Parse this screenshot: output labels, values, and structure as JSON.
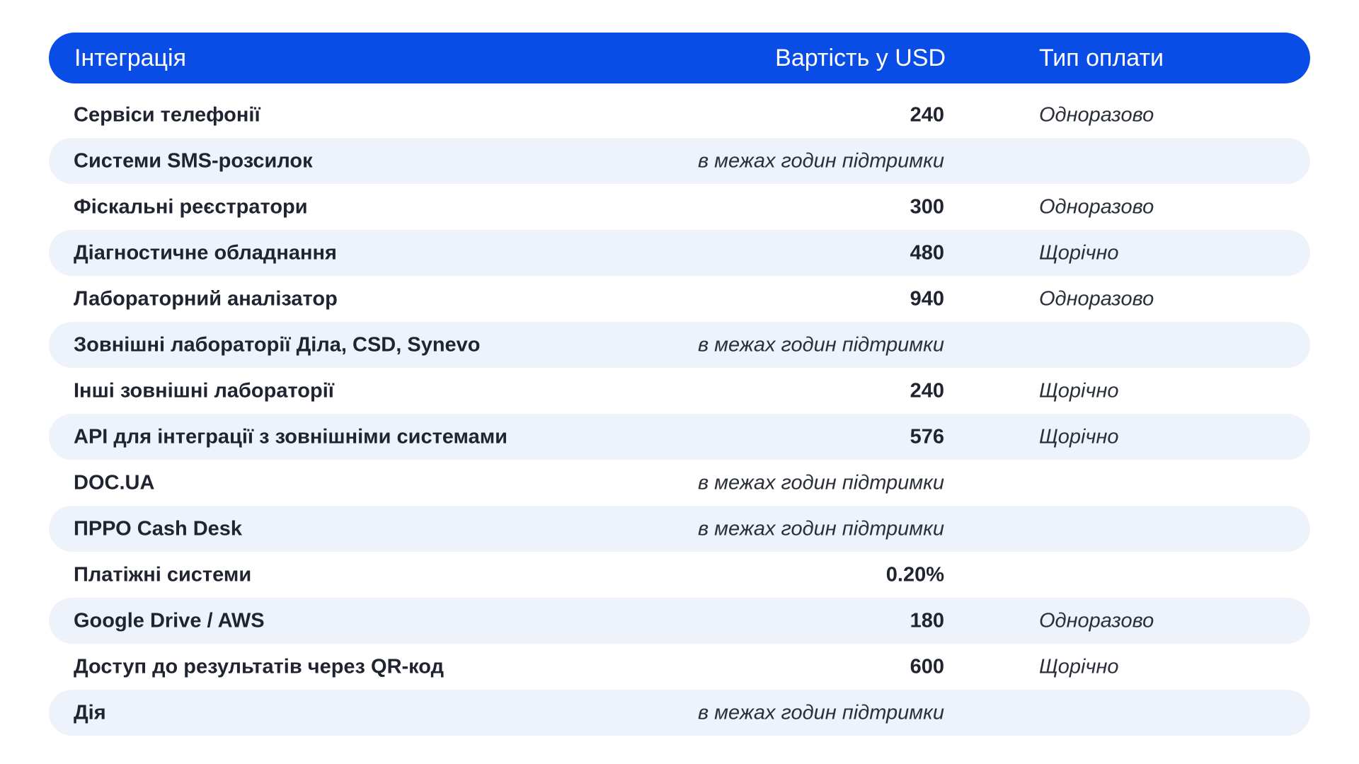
{
  "colors": {
    "accent": "#0a4de6",
    "stripe": "#eef2fb"
  },
  "header": {
    "col_integration": "Інтеграція",
    "col_cost": "Вартість у USD",
    "col_payment": "Тип оплати"
  },
  "rows": [
    {
      "name": "Сервіси телефонії",
      "cost": "240",
      "payment": "Одноразово"
    },
    {
      "name": "Системи SMS-розсилок",
      "cost": "в межах годин підтримки",
      "payment": ""
    },
    {
      "name": "Фіскальні реєстратори",
      "cost": "300",
      "payment": "Одноразово"
    },
    {
      "name": "Діагностичне обладнання",
      "cost": "480",
      "payment": "Щорічно"
    },
    {
      "name": "Лабораторний аналізатор",
      "cost": "940",
      "payment": "Одноразово"
    },
    {
      "name": "Зовнішні лабораторії Діла, CSD, Synevo",
      "cost": "в межах годин підтримки",
      "payment": ""
    },
    {
      "name": "Інші зовнішні лабораторії",
      "cost": "240",
      "payment": "Щорічно"
    },
    {
      "name": "API для інтеграції з зовнішніми системами",
      "cost": "576",
      "payment": "Щорічно"
    },
    {
      "name": "DOC.UA",
      "cost": "в межах годин підтримки",
      "payment": ""
    },
    {
      "name": "ПРРО Cash Desk",
      "cost": "в межах годин підтримки",
      "payment": ""
    },
    {
      "name": "Платіжні системи",
      "cost": "0.20%",
      "payment": ""
    },
    {
      "name": "Google Drive / AWS",
      "cost": "180",
      "payment": "Одноразово"
    },
    {
      "name": "Доступ до результатів через QR-код",
      "cost": "600",
      "payment": "Щорічно"
    },
    {
      "name": "Дія",
      "cost": "в межах годин підтримки",
      "payment": ""
    }
  ]
}
